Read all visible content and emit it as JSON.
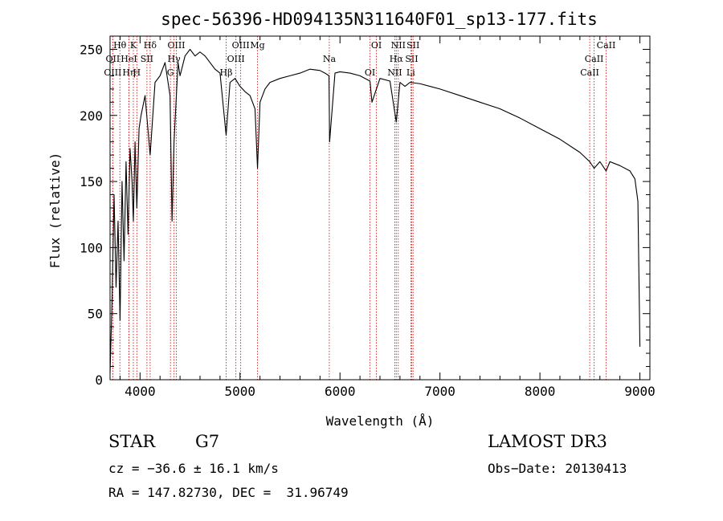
{
  "chart_data": {
    "type": "line",
    "title": "spec-56396-HD094135N311640F01_sp13-177.fits",
    "xlabel": "Wavelength (Å)",
    "ylabel": "Flux (relative)",
    "xlim": [
      3700,
      9100
    ],
    "ylim": [
      0,
      260
    ],
    "xticks": [
      4000,
      5000,
      6000,
      7000,
      8000,
      9000
    ],
    "yticks": [
      0,
      50,
      100,
      150,
      200,
      250
    ],
    "grid": false,
    "series": [
      {
        "x": [
          3700,
          3720,
          3740,
          3760,
          3780,
          3800,
          3820,
          3840,
          3860,
          3880,
          3900,
          3920,
          3933,
          3950,
          3968,
          3990,
          4010,
          4050,
          4101,
          4150,
          4200,
          4250,
          4300,
          4320,
          4340,
          4380,
          4400,
          4450,
          4500,
          4550,
          4600,
          4650,
          4700,
          4750,
          4800,
          4861,
          4900,
          4950,
          5000,
          5050,
          5100,
          5150,
          5175,
          5200,
          5250,
          5300,
          5400,
          5500,
          5600,
          5700,
          5800,
          5850,
          5890,
          5896,
          5950,
          6000,
          6100,
          6200,
          6300,
          6320,
          6400,
          6500,
          6563,
          6600,
          6650,
          6700,
          6800,
          6900,
          7000,
          7200,
          7400,
          7600,
          7800,
          8000,
          8200,
          8400,
          8498,
          8542,
          8600,
          8662,
          8700,
          8800,
          8900,
          8950,
          8980,
          9000
        ],
        "values": [
          5,
          60,
          140,
          70,
          120,
          45,
          150,
          90,
          165,
          110,
          175,
          150,
          120,
          180,
          130,
          190,
          200,
          215,
          170,
          225,
          230,
          240,
          215,
          120,
          180,
          240,
          230,
          245,
          250,
          245,
          248,
          245,
          240,
          235,
          232,
          185,
          225,
          228,
          222,
          218,
          215,
          205,
          160,
          210,
          220,
          225,
          228,
          230,
          232,
          235,
          234,
          232,
          230,
          180,
          232,
          233,
          232,
          230,
          226,
          210,
          228,
          226,
          195,
          225,
          222,
          225,
          224,
          222,
          220,
          215,
          210,
          205,
          198,
          190,
          182,
          172,
          165,
          160,
          165,
          158,
          165,
          162,
          158,
          152,
          135,
          25
        ]
      }
    ],
    "lines": [
      {
        "label": "Hθ",
        "wl": 3798
      },
      {
        "label": "OII",
        "wl": 3727
      },
      {
        "label": "OIII",
        "wl": 3727
      },
      {
        "label": "K",
        "wl": 3933
      },
      {
        "label": "HeI",
        "wl": 3889
      },
      {
        "label": "Hη",
        "wl": 3889
      },
      {
        "label": "Hδ",
        "wl": 4101
      },
      {
        "label": "SII",
        "wl": 4069
      },
      {
        "label": "H",
        "wl": 3968
      },
      {
        "label": "OIII",
        "wl": 4363
      },
      {
        "label": "Hγ",
        "wl": 4340
      },
      {
        "label": "G",
        "wl": 4304
      },
      {
        "label": "OIII",
        "wl": 5007
      },
      {
        "label": "OIII",
        "wl": 4959
      },
      {
        "label": "Hβ",
        "wl": 4861
      },
      {
        "label": "Mg",
        "wl": 5175
      },
      {
        "label": "Na",
        "wl": 5893
      },
      {
        "label": "OI",
        "wl": 6300
      },
      {
        "label": "OI",
        "wl": 6364
      },
      {
        "label": "Hα",
        "wl": 6563
      },
      {
        "label": "NII",
        "wl": 6548
      },
      {
        "label": "NII",
        "wl": 6583
      },
      {
        "label": "SII",
        "wl": 6717
      },
      {
        "label": "Li",
        "wl": 6708
      },
      {
        "label": "SII",
        "wl": 6731
      },
      {
        "label": "CaII",
        "wl": 8542
      },
      {
        "label": "CaII",
        "wl": 8498
      },
      {
        "label": "CaII",
        "wl": 8662
      }
    ]
  },
  "info": {
    "class": "STAR",
    "subclass": "G7",
    "survey": "LAMOST DR3",
    "cz": "cz = −36.6 ± 16.1 km/s",
    "obs_date": "Obs−Date: 20130413",
    "radec": "RA = 147.82730, DEC =  31.96749"
  },
  "colors": {
    "spectrum": "#000000",
    "lines": "#cc0000"
  }
}
